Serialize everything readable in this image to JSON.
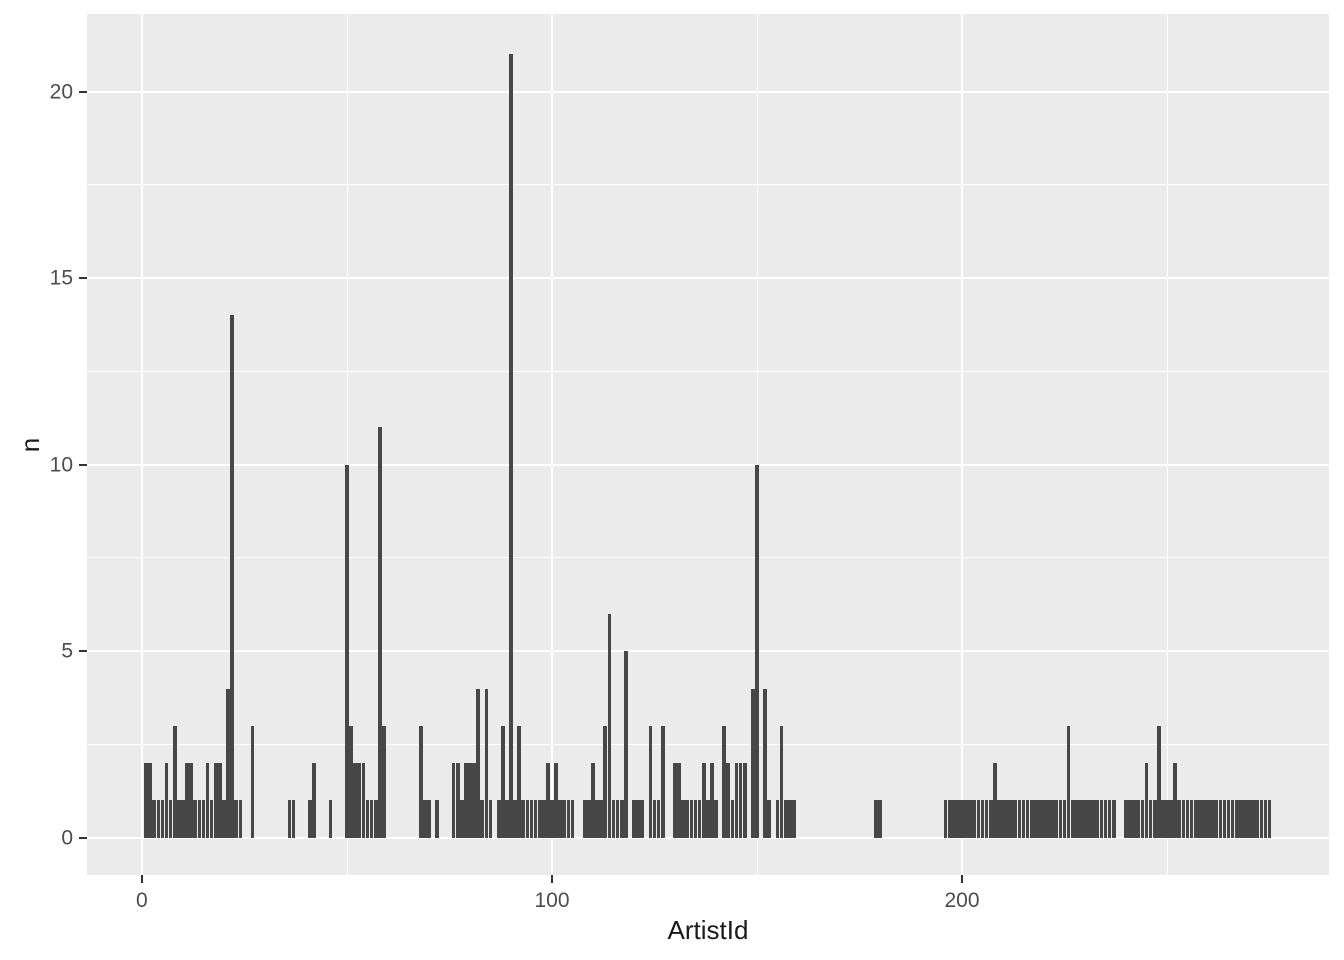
{
  "chart_data": {
    "type": "bar",
    "title": "",
    "xlabel": "ArtistId",
    "ylabel": "n",
    "x_ticks": [
      0,
      100,
      200
    ],
    "x_minor_ticks": [
      50,
      150,
      250
    ],
    "y_ticks": [
      0,
      5,
      10,
      15,
      20
    ],
    "y_minor_ticks": [
      2.5,
      7.5,
      12.5,
      17.5
    ],
    "xlim": [
      -13.4,
      289.5
    ],
    "ylim": [
      -1.0,
      22.08
    ],
    "bar_width": 0.9,
    "grid": true,
    "legend": false,
    "bars": [
      [
        1,
        2
      ],
      [
        2,
        2
      ],
      [
        3,
        1
      ],
      [
        4,
        1
      ],
      [
        5,
        1
      ],
      [
        6,
        2
      ],
      [
        7,
        1
      ],
      [
        8,
        3
      ],
      [
        9,
        1
      ],
      [
        10,
        1
      ],
      [
        11,
        2
      ],
      [
        12,
        2
      ],
      [
        13,
        1
      ],
      [
        14,
        1
      ],
      [
        15,
        1
      ],
      [
        16,
        2
      ],
      [
        17,
        1
      ],
      [
        18,
        2
      ],
      [
        19,
        2
      ],
      [
        20,
        1
      ],
      [
        21,
        4
      ],
      [
        22,
        14
      ],
      [
        23,
        1
      ],
      [
        24,
        1
      ],
      [
        27,
        3
      ],
      [
        36,
        1
      ],
      [
        37,
        1
      ],
      [
        41,
        1
      ],
      [
        42,
        2
      ],
      [
        46,
        1
      ],
      [
        50,
        10
      ],
      [
        51,
        3
      ],
      [
        52,
        2
      ],
      [
        53,
        2
      ],
      [
        54,
        2
      ],
      [
        55,
        1
      ],
      [
        56,
        1
      ],
      [
        57,
        1
      ],
      [
        58,
        11
      ],
      [
        59,
        3
      ],
      [
        68,
        3
      ],
      [
        69,
        1
      ],
      [
        70,
        1
      ],
      [
        72,
        1
      ],
      [
        76,
        2
      ],
      [
        77,
        2
      ],
      [
        78,
        1
      ],
      [
        79,
        2
      ],
      [
        80,
        2
      ],
      [
        81,
        2
      ],
      [
        82,
        4
      ],
      [
        83,
        1
      ],
      [
        84,
        4
      ],
      [
        85,
        1
      ],
      [
        87,
        1
      ],
      [
        88,
        3
      ],
      [
        89,
        1
      ],
      [
        90,
        21
      ],
      [
        91,
        1
      ],
      [
        92,
        3
      ],
      [
        93,
        1
      ],
      [
        94,
        1
      ],
      [
        95,
        1
      ],
      [
        96,
        1
      ],
      [
        97,
        1
      ],
      [
        98,
        1
      ],
      [
        99,
        2
      ],
      [
        100,
        1
      ],
      [
        101,
        2
      ],
      [
        102,
        1
      ],
      [
        103,
        1
      ],
      [
        104,
        1
      ],
      [
        105,
        1
      ],
      [
        108,
        1
      ],
      [
        109,
        1
      ],
      [
        110,
        2
      ],
      [
        111,
        1
      ],
      [
        112,
        1
      ],
      [
        113,
        3
      ],
      [
        114,
        6
      ],
      [
        115,
        1
      ],
      [
        116,
        1
      ],
      [
        117,
        1
      ],
      [
        118,
        5
      ],
      [
        120,
        1
      ],
      [
        121,
        1
      ],
      [
        122,
        1
      ],
      [
        124,
        3
      ],
      [
        125,
        1
      ],
      [
        126,
        1
      ],
      [
        127,
        3
      ],
      [
        130,
        2
      ],
      [
        131,
        2
      ],
      [
        132,
        1
      ],
      [
        133,
        1
      ],
      [
        134,
        1
      ],
      [
        135,
        1
      ],
      [
        136,
        1
      ],
      [
        137,
        2
      ],
      [
        138,
        1
      ],
      [
        139,
        2
      ],
      [
        140,
        1
      ],
      [
        142,
        3
      ],
      [
        143,
        2
      ],
      [
        144,
        1
      ],
      [
        145,
        2
      ],
      [
        146,
        2
      ],
      [
        147,
        2
      ],
      [
        149,
        4
      ],
      [
        150,
        10
      ],
      [
        152,
        4
      ],
      [
        153,
        1
      ],
      [
        155,
        1
      ],
      [
        156,
        3
      ],
      [
        157,
        1
      ],
      [
        158,
        1
      ],
      [
        159,
        1
      ],
      [
        179,
        1
      ],
      [
        180,
        1
      ],
      [
        196,
        1
      ],
      [
        197,
        1
      ],
      [
        198,
        1
      ],
      [
        199,
        1
      ],
      [
        200,
        1
      ],
      [
        201,
        1
      ],
      [
        202,
        1
      ],
      [
        203,
        1
      ],
      [
        204,
        1
      ],
      [
        205,
        1
      ],
      [
        206,
        1
      ],
      [
        207,
        1
      ],
      [
        208,
        2
      ],
      [
        209,
        1
      ],
      [
        210,
        1
      ],
      [
        211,
        1
      ],
      [
        212,
        1
      ],
      [
        213,
        1
      ],
      [
        214,
        1
      ],
      [
        215,
        1
      ],
      [
        216,
        1
      ],
      [
        217,
        1
      ],
      [
        218,
        1
      ],
      [
        219,
        1
      ],
      [
        220,
        1
      ],
      [
        221,
        1
      ],
      [
        222,
        1
      ],
      [
        223,
        1
      ],
      [
        224,
        1
      ],
      [
        225,
        1
      ],
      [
        226,
        3
      ],
      [
        227,
        1
      ],
      [
        228,
        1
      ],
      [
        229,
        1
      ],
      [
        230,
        1
      ],
      [
        231,
        1
      ],
      [
        232,
        1
      ],
      [
        233,
        1
      ],
      [
        234,
        1
      ],
      [
        235,
        1
      ],
      [
        236,
        1
      ],
      [
        237,
        1
      ],
      [
        240,
        1
      ],
      [
        241,
        1
      ],
      [
        242,
        1
      ],
      [
        243,
        1
      ],
      [
        244,
        1
      ],
      [
        245,
        2
      ],
      [
        246,
        1
      ],
      [
        247,
        1
      ],
      [
        248,
        3
      ],
      [
        249,
        1
      ],
      [
        250,
        1
      ],
      [
        251,
        1
      ],
      [
        252,
        2
      ],
      [
        253,
        1
      ],
      [
        254,
        1
      ],
      [
        255,
        1
      ],
      [
        256,
        1
      ],
      [
        257,
        1
      ],
      [
        258,
        1
      ],
      [
        259,
        1
      ],
      [
        260,
        1
      ],
      [
        261,
        1
      ],
      [
        262,
        1
      ],
      [
        263,
        1
      ],
      [
        264,
        1
      ],
      [
        265,
        1
      ],
      [
        266,
        1
      ],
      [
        267,
        1
      ],
      [
        268,
        1
      ],
      [
        269,
        1
      ],
      [
        270,
        1
      ],
      [
        271,
        1
      ],
      [
        272,
        1
      ],
      [
        273,
        1
      ],
      [
        274,
        1
      ],
      [
        275,
        1
      ]
    ]
  },
  "style": {
    "outer_bg": "#ffffff",
    "panel_bg": "#ebebeb",
    "bar_fill": "#474747",
    "grid_color": "#ffffff",
    "axis_text_color": "#4d4d4d",
    "axis_title_color": "#1a1a1a",
    "tick_color": "#333333"
  }
}
